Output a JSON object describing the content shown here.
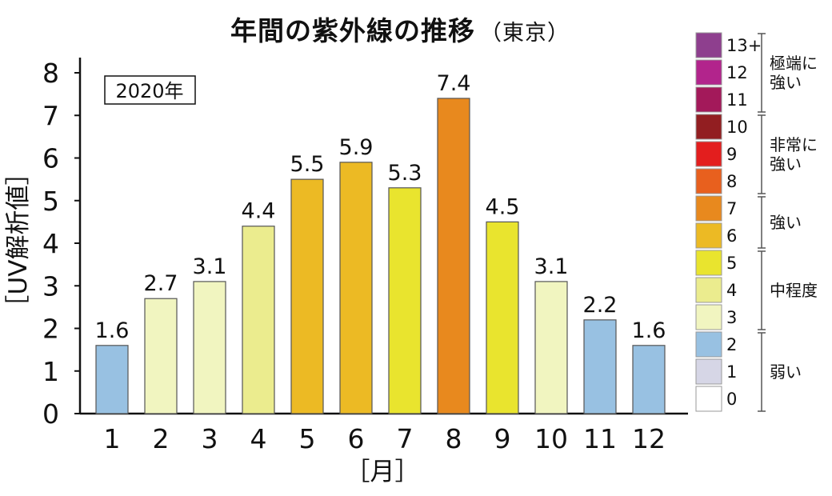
{
  "chart_data": {
    "type": "bar",
    "title": "年間の紫外線の推移",
    "subtitle": "（東京）",
    "year_label": "2020年",
    "ylabel": "［UV解析値］",
    "xlabel": "［月］",
    "ylim": [
      0,
      8
    ],
    "yticks": [
      0,
      1,
      2,
      3,
      4,
      5,
      6,
      7,
      8
    ],
    "categories": [
      "1",
      "2",
      "3",
      "4",
      "5",
      "6",
      "7",
      "8",
      "9",
      "10",
      "11",
      "12"
    ],
    "values": [
      1.6,
      2.7,
      3.1,
      4.4,
      5.5,
      5.9,
      5.3,
      7.4,
      4.5,
      3.1,
      2.2,
      1.6
    ],
    "value_labels": [
      "1.6",
      "2.7",
      "3.1",
      "4.4",
      "5.5",
      "5.9",
      "5.3",
      "7.4",
      "4.5",
      "3.1",
      "2.2",
      "1.6"
    ],
    "grid": false,
    "legend_placement": "right",
    "legend": [
      {
        "level": "13+",
        "color": "#8E3F8E"
      },
      {
        "level": "12",
        "color": "#B2248C"
      },
      {
        "level": "11",
        "color": "#A3195A"
      },
      {
        "level": "10",
        "color": "#921E21"
      },
      {
        "level": "9",
        "color": "#E31E1E"
      },
      {
        "level": "8",
        "color": "#E8601E"
      },
      {
        "level": "7",
        "color": "#E8891E"
      },
      {
        "level": "6",
        "color": "#ECBA24"
      },
      {
        "level": "5",
        "color": "#E9E42E"
      },
      {
        "level": "4",
        "color": "#EBEC8E"
      },
      {
        "level": "3",
        "color": "#F1F5C0"
      },
      {
        "level": "2",
        "color": "#98C1E2"
      },
      {
        "level": "1",
        "color": "#D6D6E6"
      },
      {
        "level": "0",
        "color": "#FFFFFF"
      }
    ],
    "legend_groups": [
      {
        "label": [
          "極端に",
          "強い"
        ],
        "levels": [
          "13+",
          "12",
          "11"
        ]
      },
      {
        "label": [
          "非常に",
          "強い"
        ],
        "levels": [
          "10",
          "9",
          "8"
        ]
      },
      {
        "label": [
          "強い"
        ],
        "levels": [
          "7",
          "6"
        ]
      },
      {
        "label": [
          "中程度"
        ],
        "levels": [
          "5",
          "4",
          "3"
        ]
      },
      {
        "label": [
          "弱い"
        ],
        "levels": [
          "2",
          "1",
          "0"
        ]
      }
    ]
  }
}
